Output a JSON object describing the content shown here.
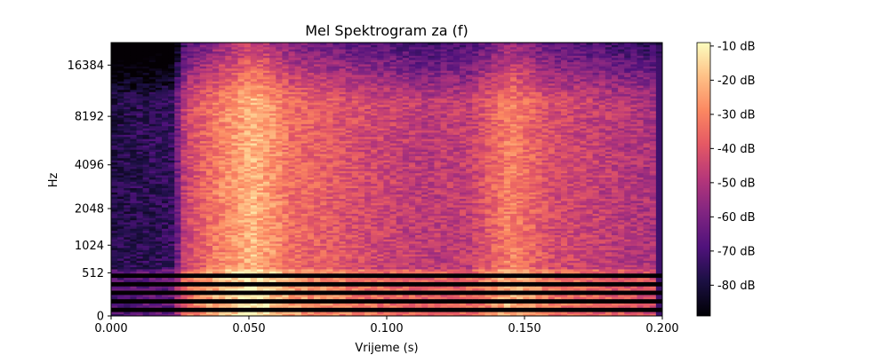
{
  "chart_data": {
    "type": "heatmap",
    "title": "Mel Spektrogram za (f)",
    "xlabel": "Vrijeme (s)",
    "ylabel": "Hz",
    "xlim": [
      0.0,
      0.2
    ],
    "x_ticks": [
      "0.000",
      "0.050",
      "0.100",
      "0.150",
      "0.200"
    ],
    "x_tick_values": [
      0.0,
      0.05,
      0.1,
      0.15,
      0.2
    ],
    "y_scale": "mel",
    "y_ticks": [
      "0",
      "512",
      "1024",
      "2048",
      "4096",
      "8192",
      "16384"
    ],
    "y_tick_values": [
      0,
      512,
      1024,
      2048,
      4096,
      8192,
      16384
    ],
    "y_max_hz": 22050,
    "colormap": "magma",
    "colorbar": {
      "range_db": [
        -89,
        -9
      ],
      "tick_values": [
        -10,
        -20,
        -30,
        -40,
        -50,
        -60,
        -70,
        -80
      ],
      "tick_labels": [
        "-10 dB",
        "-20 dB",
        "-30 dB",
        "-40 dB",
        "-50 dB",
        "-60 dB",
        "-70 dB",
        "-80 dB"
      ]
    },
    "n_time_frames": 87,
    "n_mel_bands": 128,
    "empty_low_bands": [
      2,
      6,
      10,
      14,
      18
    ],
    "time_profile": [
      {
        "t": 0.0,
        "level_db": -78
      },
      {
        "t": 0.022,
        "level_db": -74
      },
      {
        "t": 0.027,
        "level_db": -44
      },
      {
        "t": 0.04,
        "level_db": -30
      },
      {
        "t": 0.052,
        "level_db": -20
      },
      {
        "t": 0.065,
        "level_db": -34
      },
      {
        "t": 0.09,
        "level_db": -42
      },
      {
        "t": 0.115,
        "level_db": -48
      },
      {
        "t": 0.13,
        "level_db": -46
      },
      {
        "t": 0.145,
        "level_db": -30
      },
      {
        "t": 0.16,
        "level_db": -42
      },
      {
        "t": 0.2,
        "level_db": -52
      }
    ]
  }
}
